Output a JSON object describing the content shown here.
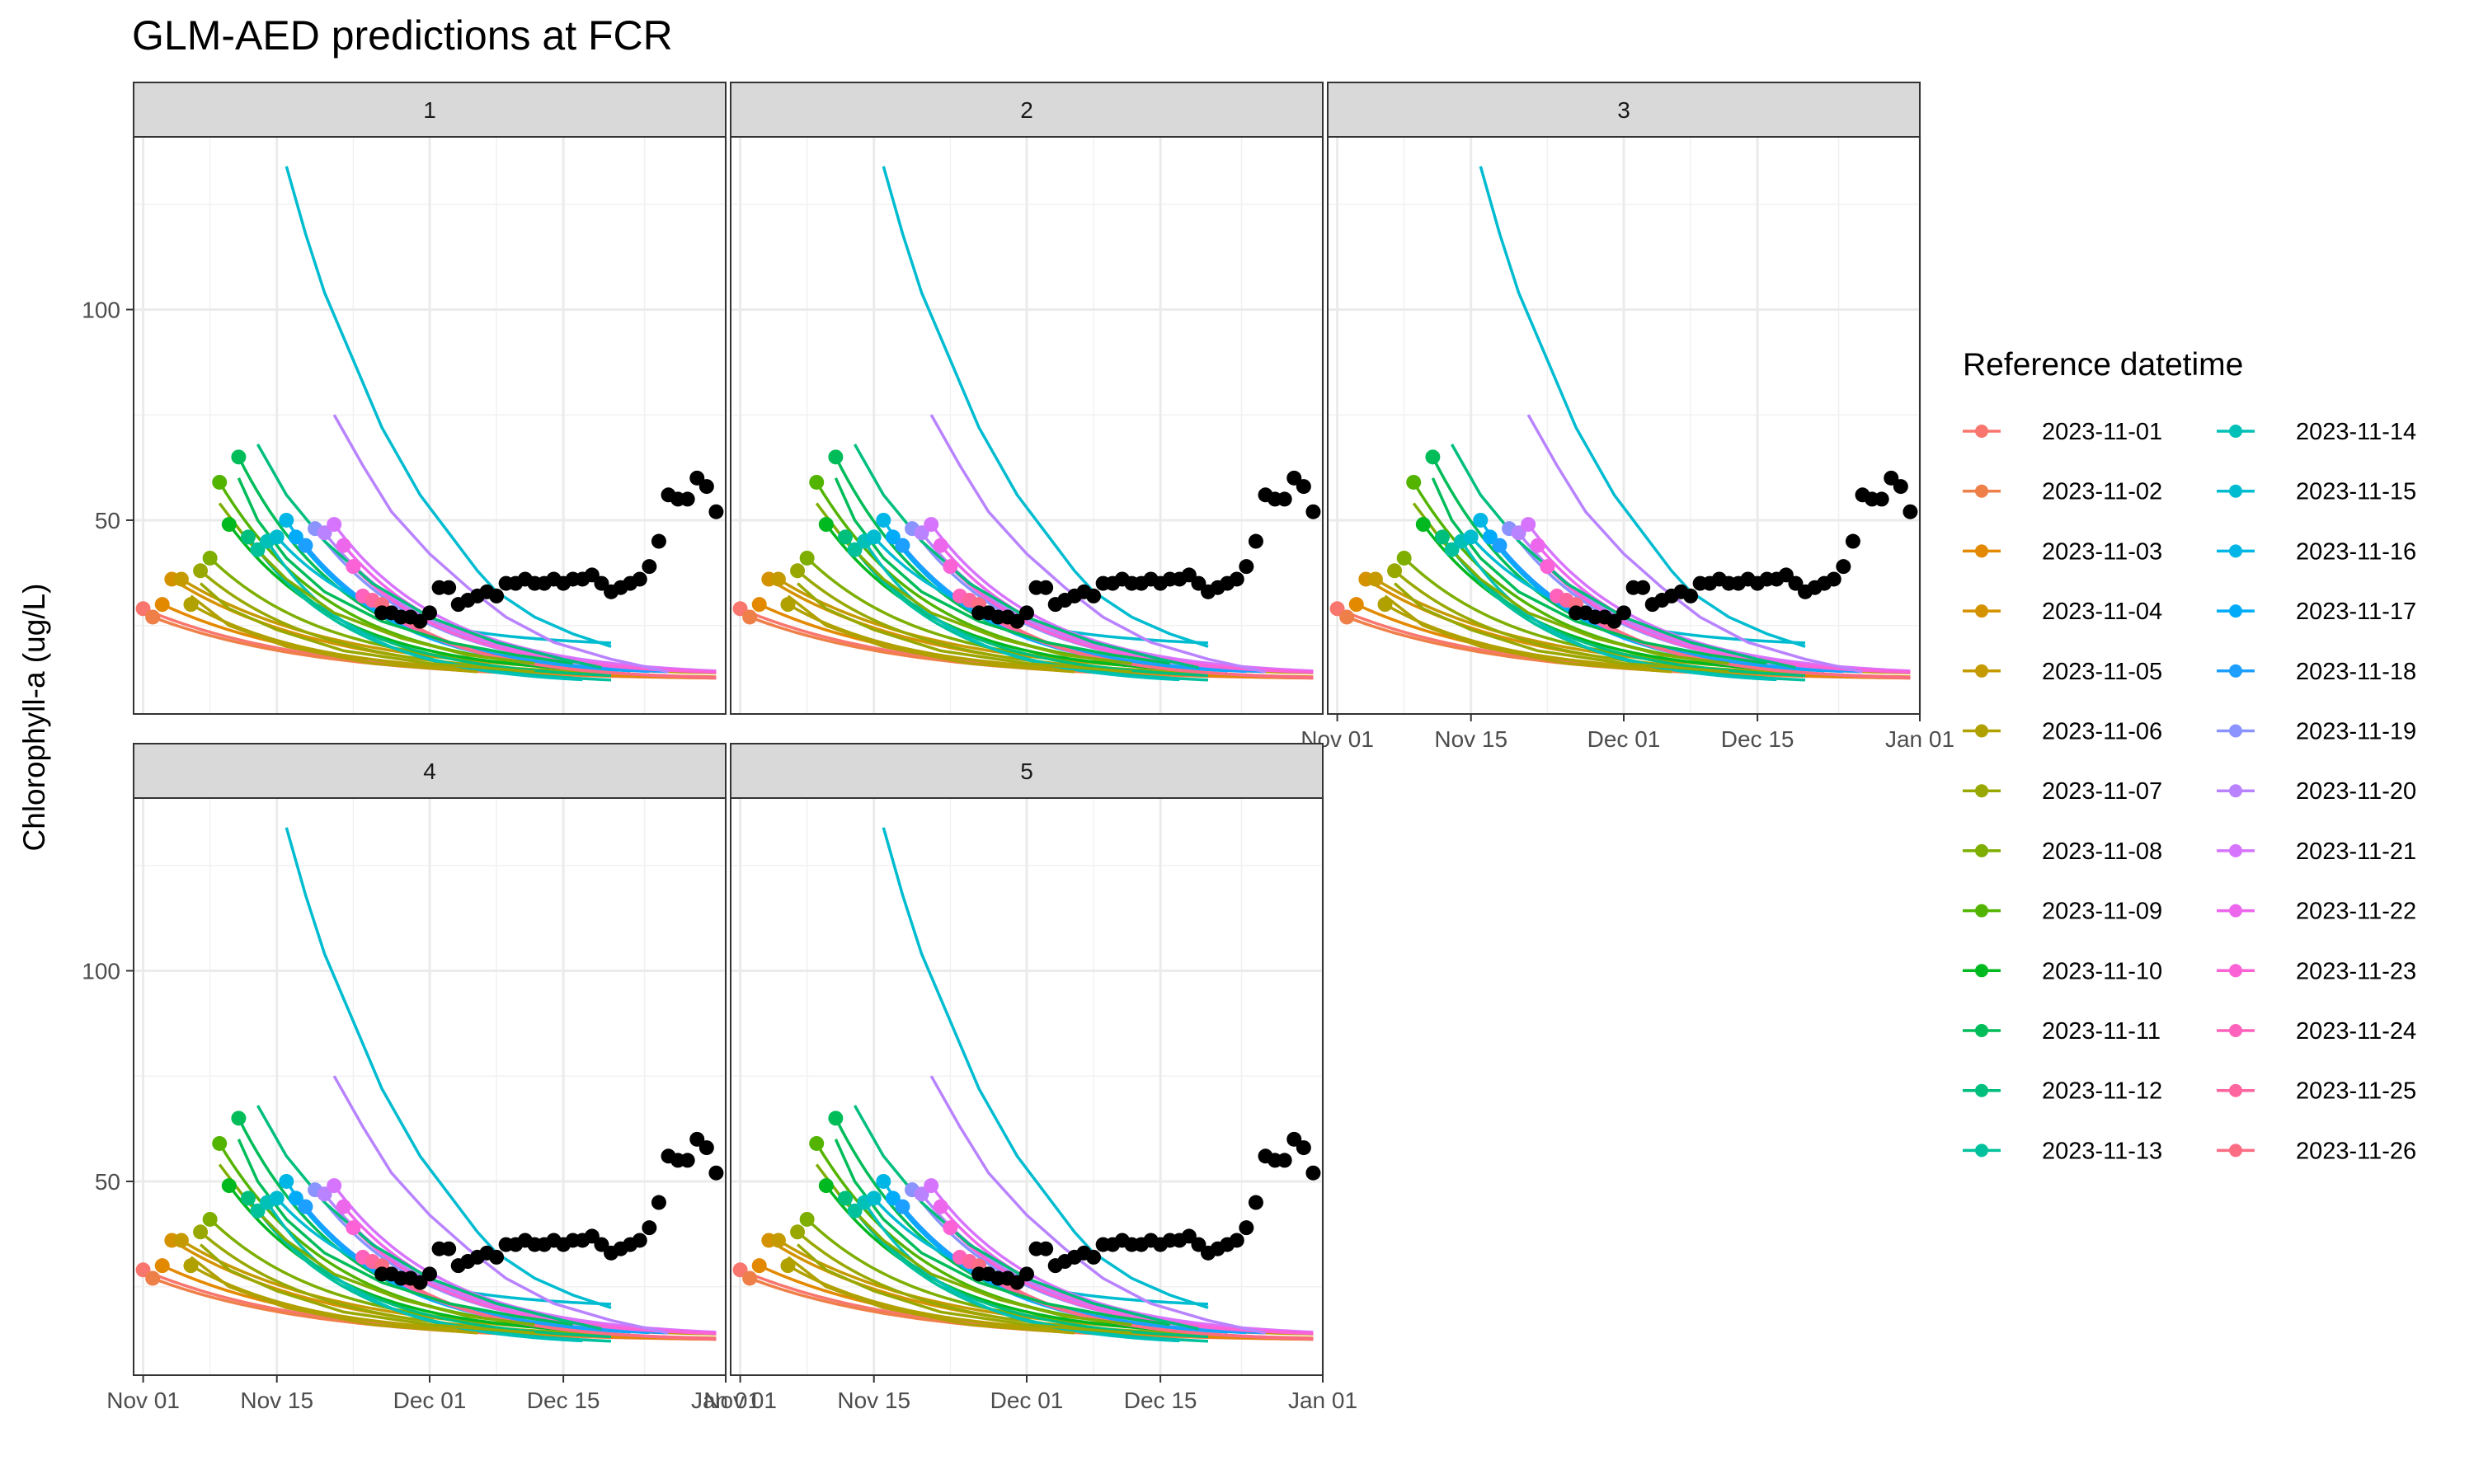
{
  "chart_data": {
    "type": "line",
    "title": "GLM-AED predictions at FCR",
    "xlabel": "",
    "ylabel": "Chlorophyll-a (ug/L)",
    "facets": [
      "1",
      "2",
      "3",
      "4",
      "5"
    ],
    "xlim": [
      "2023-10-31",
      "2024-01-01"
    ],
    "ylim": [
      4,
      141
    ],
    "x_ticks": [
      {
        "date": "2023-11-01",
        "label": "Nov 01"
      },
      {
        "date": "2023-11-15",
        "label": "Nov 15"
      },
      {
        "date": "2023-12-01",
        "label": "Dec 01"
      },
      {
        "date": "2023-12-15",
        "label": "Dec 15"
      },
      {
        "date": "2024-01-01",
        "label": "Jan 01"
      }
    ],
    "y_ticks": [
      50,
      100
    ],
    "grid": true,
    "legend": {
      "title": "Reference datetime",
      "position": "right",
      "columns": 2
    },
    "forecast_series": [
      {
        "name": "2023-11-01",
        "color": "#F8766D",
        "start_value": 29,
        "end_date": "2023-12-31",
        "end_value": 12
      },
      {
        "name": "2023-11-02",
        "color": "#EF7F49",
        "start_value": 27,
        "end_date": "2023-12-31",
        "end_value": 12
      },
      {
        "name": "2023-11-03",
        "color": "#E38900",
        "start_value": 30,
        "end_date": "2023-12-31",
        "end_value": 12
      },
      {
        "name": "2023-11-04",
        "color": "#D49200",
        "start_value": 36,
        "end_date": "2023-12-31",
        "end_value": 12
      },
      {
        "name": "2023-11-05",
        "color": "#C49A00",
        "start_value": 36,
        "end_date": "2023-12-31",
        "end_value": 13
      },
      {
        "name": "2023-11-06",
        "color": "#B0A100",
        "start_value": 30,
        "end_date": "2023-12-20",
        "end_value": 13
      },
      {
        "name": "2023-11-07",
        "color": "#99A800",
        "start_value": 38,
        "end_date": "2023-12-20",
        "end_value": 13
      },
      {
        "name": "2023-11-08",
        "color": "#7DAE00",
        "start_value": 41,
        "end_date": "2023-12-20",
        "end_value": 14
      },
      {
        "name": "2023-11-09",
        "color": "#53B400",
        "start_value": 59,
        "end_date": "2023-12-20",
        "end_value": 13
      },
      {
        "name": "2023-11-10",
        "color": "#00B81F",
        "start_value": 49,
        "end_date": "2023-12-20",
        "end_value": 13
      },
      {
        "name": "2023-11-11",
        "color": "#00BC59",
        "start_value": 65,
        "end_date": "2023-12-20",
        "end_value": 13
      },
      {
        "name": "2023-11-12",
        "color": "#00BF7D",
        "start_value": 46,
        "end_date": "2023-12-20",
        "end_value": 12
      },
      {
        "name": "2023-11-13",
        "color": "#00C19C",
        "start_value": 43,
        "end_date": "2023-12-20",
        "end_value": 11
      },
      {
        "name": "2023-11-14",
        "color": "#00C0B7",
        "start_value": 45,
        "end_date": "2023-12-17",
        "end_value": 11
      },
      {
        "name": "2023-11-15",
        "color": "#00BCD0",
        "start_value": 46,
        "end_date": "2023-12-20",
        "end_value": 20
      },
      {
        "name": "2023-11-16",
        "color": "#00B6E6",
        "start_value": 50,
        "end_date": "2023-12-22",
        "end_value": 13
      },
      {
        "name": "2023-11-17",
        "color": "#00ACF9",
        "start_value": 46,
        "end_date": "2023-12-24",
        "end_value": 13
      },
      {
        "name": "2023-11-18",
        "color": "#1C9FFF",
        "start_value": 44,
        "end_date": "2023-12-26",
        "end_value": 13
      },
      {
        "name": "2023-11-19",
        "color": "#8B93FF",
        "start_value": 48,
        "end_date": "2023-12-28",
        "end_value": 13
      },
      {
        "name": "2023-11-20",
        "color": "#B983FF",
        "start_value": 47,
        "end_date": "2023-12-30",
        "end_value": 13
      },
      {
        "name": "2023-11-21",
        "color": "#D774FD",
        "start_value": 49,
        "end_date": "2023-12-31",
        "end_value": 13
      },
      {
        "name": "2023-11-22",
        "color": "#ED67EC",
        "start_value": 44,
        "end_date": "2023-12-31",
        "end_value": 13
      },
      {
        "name": "2023-11-23",
        "color": "#FA62D6",
        "start_value": 39,
        "end_date": "2023-12-31",
        "end_value": 13
      },
      {
        "name": "2023-11-24",
        "color": "#FF62BC",
        "start_value": 32,
        "end_date": "2023-12-31",
        "end_value": 12
      },
      {
        "name": "2023-11-25",
        "color": "#FF66A0",
        "start_value": 31,
        "end_date": "2023-12-31",
        "end_value": 12
      },
      {
        "name": "2023-11-26",
        "color": "#FC6D84",
        "start_value": 30,
        "end_date": "2023-12-31",
        "end_value": 12
      }
    ],
    "extra_forecast_lines": [
      {
        "ref": "2023-11-15",
        "color": "#00BCD0",
        "points": [
          [
            "2023-11-16",
            134
          ],
          [
            "2023-11-18",
            118
          ],
          [
            "2023-11-20",
            104
          ],
          [
            "2023-11-23",
            88
          ],
          [
            "2023-11-26",
            72
          ],
          [
            "2023-11-30",
            56
          ],
          [
            "2023-12-03",
            47
          ],
          [
            "2023-12-06",
            38
          ],
          [
            "2023-12-08",
            33
          ],
          [
            "2023-12-12",
            27
          ],
          [
            "2023-12-16",
            23
          ],
          [
            "2023-12-20",
            20
          ]
        ]
      },
      {
        "ref": "2023-11-20",
        "color": "#B983FF",
        "points": [
          [
            "2023-11-21",
            75
          ],
          [
            "2023-11-24",
            63
          ],
          [
            "2023-11-27",
            52
          ],
          [
            "2023-12-01",
            42
          ],
          [
            "2023-12-05",
            34
          ],
          [
            "2023-12-09",
            27
          ],
          [
            "2023-12-14",
            21
          ],
          [
            "2023-12-20",
            17
          ],
          [
            "2023-12-26",
            14
          ]
        ]
      },
      {
        "ref": "2023-11-11",
        "color": "#00BC59",
        "points": [
          [
            "2023-11-11",
            60
          ],
          [
            "2023-11-13",
            50
          ],
          [
            "2023-11-16",
            41
          ],
          [
            "2023-11-20",
            33
          ],
          [
            "2023-11-26",
            26
          ],
          [
            "2023-12-03",
            21
          ],
          [
            "2023-12-10",
            18
          ],
          [
            "2023-12-16",
            16
          ]
        ]
      },
      {
        "ref": "2023-11-14",
        "color": "#00BF7D",
        "points": [
          [
            "2023-11-13",
            68
          ],
          [
            "2023-11-16",
            56
          ],
          [
            "2023-11-20",
            45
          ],
          [
            "2023-11-25",
            35
          ],
          [
            "2023-12-01",
            27
          ],
          [
            "2023-12-08",
            21
          ],
          [
            "2023-12-15",
            17
          ],
          [
            "2023-12-19",
            15
          ]
        ]
      },
      {
        "ref": "2023-11-07",
        "color": "#7DAE00",
        "points": [
          [
            "2023-11-09",
            54
          ],
          [
            "2023-11-12",
            45
          ],
          [
            "2023-11-16",
            36
          ],
          [
            "2023-11-21",
            28
          ],
          [
            "2023-11-28",
            22
          ],
          [
            "2023-12-05",
            18
          ],
          [
            "2023-12-12",
            16
          ]
        ]
      },
      {
        "ref": "2023-11-06",
        "color": "#99A800",
        "points": [
          [
            "2023-11-07",
            35
          ],
          [
            "2023-11-10",
            29
          ],
          [
            "2023-11-15",
            24
          ],
          [
            "2023-11-22",
            19
          ],
          [
            "2023-12-01",
            16
          ],
          [
            "2023-12-12",
            14
          ]
        ]
      },
      {
        "ref": "2023-11-05",
        "color": "#B0A100",
        "points": [
          [
            "2023-11-06",
            32
          ],
          [
            "2023-11-10",
            25
          ],
          [
            "2023-11-16",
            20
          ],
          [
            "2023-11-25",
            16
          ],
          [
            "2023-12-06",
            14
          ]
        ]
      }
    ],
    "observations": {
      "color": "#000000",
      "points": [
        [
          "2023-11-26",
          28
        ],
        [
          "2023-11-27",
          28
        ],
        [
          "2023-11-28",
          27
        ],
        [
          "2023-11-29",
          27
        ],
        [
          "2023-11-30",
          26
        ],
        [
          "2023-12-01",
          28
        ],
        [
          "2023-12-02",
          34
        ],
        [
          "2023-12-03",
          34
        ],
        [
          "2023-12-04",
          30
        ],
        [
          "2023-12-05",
          31
        ],
        [
          "2023-12-06",
          32
        ],
        [
          "2023-12-07",
          33
        ],
        [
          "2023-12-08",
          32
        ],
        [
          "2023-12-09",
          35
        ],
        [
          "2023-12-10",
          35
        ],
        [
          "2023-12-11",
          36
        ],
        [
          "2023-12-12",
          35
        ],
        [
          "2023-12-13",
          35
        ],
        [
          "2023-12-14",
          36
        ],
        [
          "2023-12-15",
          35
        ],
        [
          "2023-12-16",
          36
        ],
        [
          "2023-12-17",
          36
        ],
        [
          "2023-12-18",
          37
        ],
        [
          "2023-12-19",
          35
        ],
        [
          "2023-12-20",
          33
        ],
        [
          "2023-12-21",
          34
        ],
        [
          "2023-12-22",
          35
        ],
        [
          "2023-12-23",
          36
        ],
        [
          "2023-12-24",
          39
        ],
        [
          "2023-12-25",
          45
        ],
        [
          "2023-12-26",
          56
        ],
        [
          "2023-12-27",
          55
        ],
        [
          "2023-12-28",
          55
        ],
        [
          "2023-12-29",
          60
        ],
        [
          "2023-12-30",
          58
        ],
        [
          "2023-12-31",
          52
        ]
      ]
    }
  }
}
